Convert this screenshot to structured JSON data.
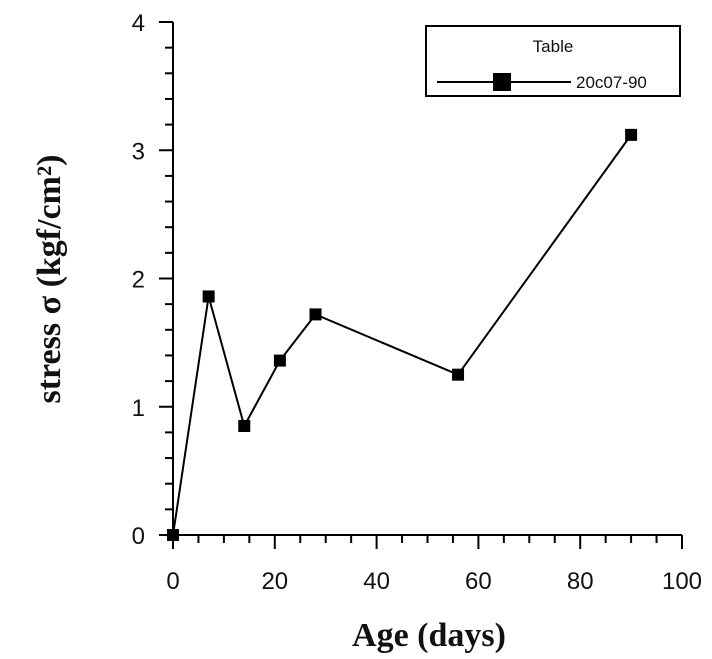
{
  "chart_data": {
    "type": "line",
    "title": "",
    "xlabel": "Age (days)",
    "ylabel": "stress σ (kgf/cm²)",
    "xlim": [
      0,
      100
    ],
    "ylim": [
      0,
      4
    ],
    "x_ticks": [
      0,
      20,
      40,
      60,
      80,
      100
    ],
    "y_ticks": [
      0,
      1,
      2,
      3,
      4
    ],
    "x_tick_labels": [
      "0",
      "20",
      "40",
      "60",
      "80",
      "100"
    ],
    "y_tick_labels": [
      "0",
      "1",
      "2",
      "3",
      "4"
    ],
    "grid": false,
    "legend": {
      "title": "Table",
      "position": "top-right",
      "entries": [
        "20c07-90"
      ]
    },
    "series": [
      {
        "name": "20c07-90",
        "marker": "square",
        "color": "#000000",
        "x": [
          0,
          7,
          14,
          21,
          28,
          56,
          90
        ],
        "y": [
          0.0,
          1.86,
          0.85,
          1.36,
          1.72,
          1.25,
          3.12
        ]
      }
    ]
  }
}
